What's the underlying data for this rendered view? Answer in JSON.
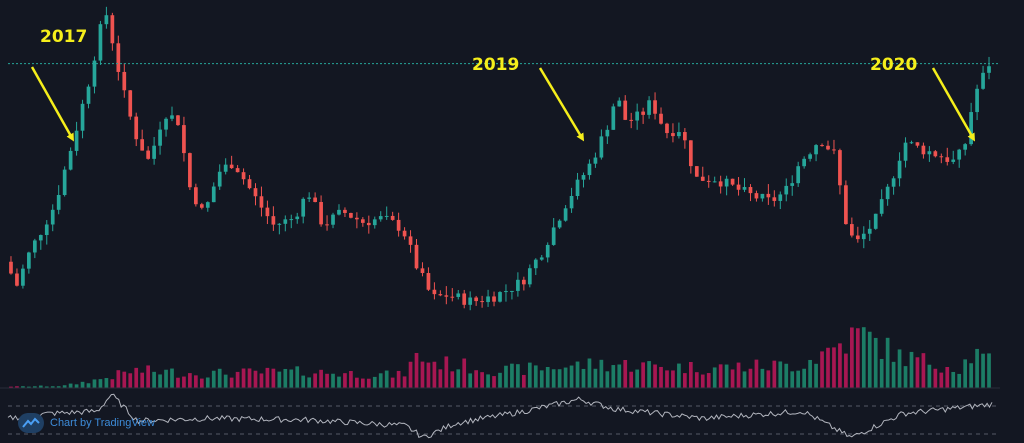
{
  "colors": {
    "background": "#131722",
    "up": "#26a69a",
    "down": "#ef5350",
    "volume_up": "#1f8f72",
    "volume_down": "#c2185b",
    "annotation": "#f5ee1b",
    "resistance": "#26a69a",
    "rsi": "#b2b5be"
  },
  "annotations": [
    {
      "label": "2017"
    },
    {
      "label": "2019"
    },
    {
      "label": "2020"
    }
  ],
  "brand": {
    "text": "Chart by TradingView",
    "icon": "tradingview-logo-icon"
  },
  "chart_data": {
    "type": "candlestick",
    "xlabel": "",
    "ylabel": "",
    "grid": false,
    "legend": "none",
    "resistance_level": 0.845,
    "price_anchors": [
      [
        0,
        0.25
      ],
      [
        12,
        0.18
      ],
      [
        25,
        0.28
      ],
      [
        50,
        0.42
      ],
      [
        70,
        0.63
      ],
      [
        85,
        0.8
      ],
      [
        95,
        0.94
      ],
      [
        103,
        1.0
      ],
      [
        110,
        0.88
      ],
      [
        120,
        0.75
      ],
      [
        130,
        0.64
      ],
      [
        145,
        0.55
      ],
      [
        160,
        0.7
      ],
      [
        175,
        0.67
      ],
      [
        185,
        0.48
      ],
      [
        200,
        0.39
      ],
      [
        215,
        0.52
      ],
      [
        230,
        0.55
      ],
      [
        250,
        0.45
      ],
      [
        270,
        0.36
      ],
      [
        290,
        0.38
      ],
      [
        305,
        0.46
      ],
      [
        320,
        0.36
      ],
      [
        340,
        0.4
      ],
      [
        360,
        0.37
      ],
      [
        380,
        0.38
      ],
      [
        400,
        0.35
      ],
      [
        415,
        0.23
      ],
      [
        430,
        0.14
      ],
      [
        445,
        0.15
      ],
      [
        470,
        0.13
      ],
      [
        495,
        0.15
      ],
      [
        520,
        0.19
      ],
      [
        540,
        0.28
      ],
      [
        565,
        0.43
      ],
      [
        590,
        0.55
      ],
      [
        605,
        0.65
      ],
      [
        615,
        0.75
      ],
      [
        625,
        0.67
      ],
      [
        640,
        0.69
      ],
      [
        650,
        0.73
      ],
      [
        665,
        0.64
      ],
      [
        680,
        0.65
      ],
      [
        695,
        0.5
      ],
      [
        715,
        0.5
      ],
      [
        735,
        0.47
      ],
      [
        750,
        0.45
      ],
      [
        770,
        0.43
      ],
      [
        785,
        0.46
      ],
      [
        800,
        0.55
      ],
      [
        820,
        0.62
      ],
      [
        835,
        0.57
      ],
      [
        845,
        0.38
      ],
      [
        855,
        0.3
      ],
      [
        875,
        0.37
      ],
      [
        890,
        0.48
      ],
      [
        905,
        0.61
      ],
      [
        920,
        0.59
      ],
      [
        940,
        0.57
      ],
      [
        955,
        0.55
      ],
      [
        965,
        0.59
      ],
      [
        975,
        0.75
      ],
      [
        990,
        0.845
      ]
    ],
    "volume_anchors": [
      [
        0,
        0.02
      ],
      [
        60,
        0.04
      ],
      [
        95,
        0.15
      ],
      [
        130,
        0.3
      ],
      [
        200,
        0.25
      ],
      [
        300,
        0.28
      ],
      [
        400,
        0.22
      ],
      [
        415,
        0.55
      ],
      [
        430,
        0.45
      ],
      [
        500,
        0.3
      ],
      [
        600,
        0.42
      ],
      [
        700,
        0.35
      ],
      [
        800,
        0.4
      ],
      [
        845,
        0.8
      ],
      [
        860,
        0.95
      ],
      [
        900,
        0.55
      ],
      [
        960,
        0.35
      ],
      [
        975,
        0.6
      ],
      [
        990,
        0.45
      ]
    ],
    "rsi_anchors": [
      [
        0,
        0.45
      ],
      [
        40,
        0.55
      ],
      [
        90,
        0.6
      ],
      [
        104,
        0.95
      ],
      [
        130,
        0.4
      ],
      [
        200,
        0.45
      ],
      [
        300,
        0.42
      ],
      [
        400,
        0.3
      ],
      [
        418,
        0.05
      ],
      [
        450,
        0.35
      ],
      [
        520,
        0.6
      ],
      [
        575,
        0.85
      ],
      [
        610,
        0.65
      ],
      [
        700,
        0.45
      ],
      [
        800,
        0.6
      ],
      [
        848,
        0.05
      ],
      [
        900,
        0.55
      ],
      [
        970,
        0.7
      ],
      [
        990,
        0.75
      ]
    ]
  }
}
